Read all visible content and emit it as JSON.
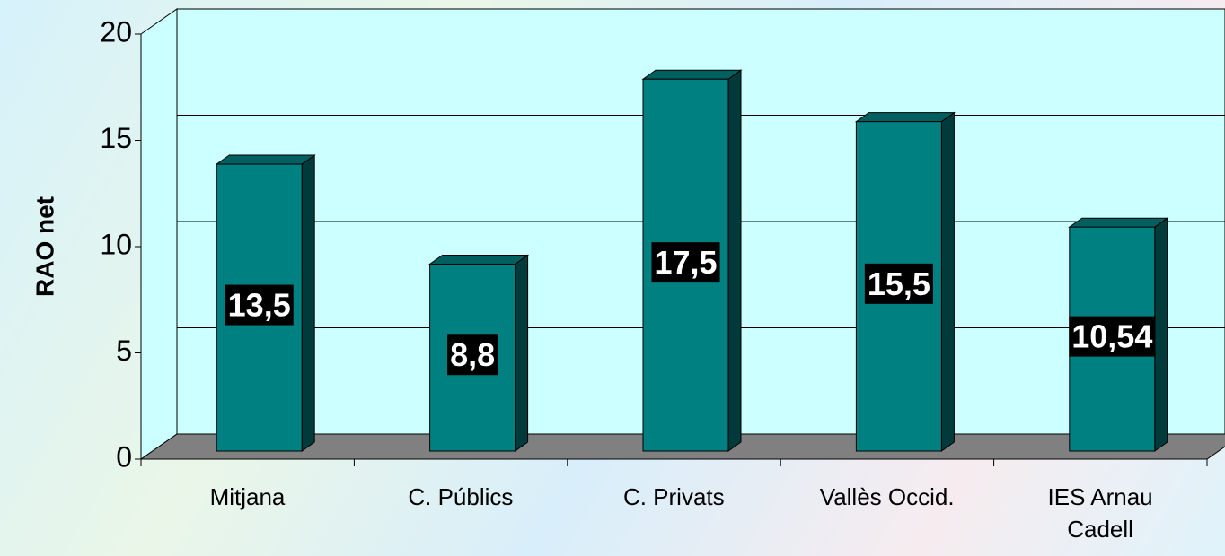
{
  "chart_data": {
    "type": "bar3d",
    "y_axis_label": "RAO net",
    "categories": [
      "Mitjana",
      "C. Públics",
      "C. Privats",
      "Vallès Occid.",
      "IES Arnau\nCadell"
    ],
    "values": [
      13.5,
      8.8,
      17.5,
      15.5,
      10.54
    ],
    "value_labels": [
      "13,5",
      "8,8",
      "17,5",
      "15,5",
      "10,54"
    ],
    "color": "#008080",
    "ylim": [
      0,
      20
    ],
    "yticks": [
      0,
      5,
      10,
      15,
      20
    ],
    "grid": true
  }
}
